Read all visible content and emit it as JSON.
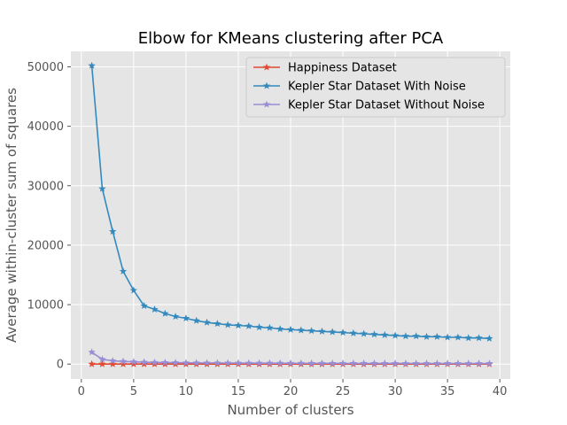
{
  "chart_data": {
    "type": "line",
    "title": "Elbow for KMeans clustering after PCA",
    "xlabel": "Number of clusters",
    "ylabel": "Average within-cluster sum of squares",
    "xlim": [
      -1,
      41
    ],
    "ylim": [
      -2500,
      52600
    ],
    "xticks": [
      0,
      5,
      10,
      15,
      20,
      25,
      30,
      35,
      40
    ],
    "yticks": [
      0,
      10000,
      20000,
      30000,
      40000,
      50000
    ],
    "grid": true,
    "legend_position": "top-right",
    "marker": "star",
    "x": [
      1,
      2,
      3,
      4,
      5,
      6,
      7,
      8,
      9,
      10,
      11,
      12,
      13,
      14,
      15,
      16,
      17,
      18,
      19,
      20,
      21,
      22,
      23,
      24,
      25,
      26,
      27,
      28,
      29,
      30,
      31,
      32,
      33,
      34,
      35,
      36,
      37,
      38,
      39
    ],
    "series": [
      {
        "name": "Happiness Dataset",
        "color": "#E24A33",
        "values": [
          5,
          4,
          3,
          3,
          2,
          2,
          2,
          2,
          2,
          2,
          1,
          1,
          1,
          1,
          1,
          1,
          1,
          1,
          1,
          1,
          1,
          1,
          1,
          1,
          1,
          1,
          1,
          1,
          1,
          1,
          1,
          1,
          1,
          1,
          1,
          1,
          1,
          1,
          1
        ]
      },
      {
        "name": "Kepler Star Dataset With Noise",
        "color": "#348ABD",
        "values": [
          50200,
          29500,
          22300,
          15600,
          12400,
          9800,
          9200,
          8500,
          8000,
          7700,
          7300,
          7000,
          6800,
          6600,
          6500,
          6400,
          6200,
          6100,
          5900,
          5800,
          5700,
          5600,
          5500,
          5400,
          5300,
          5200,
          5100,
          5000,
          4900,
          4800,
          4700,
          4700,
          4600,
          4600,
          4500,
          4500,
          4400,
          4400,
          4300
        ]
      },
      {
        "name": "Kepler Star Dataset Without Noise",
        "color": "#988ED5",
        "values": [
          2000,
          800,
          550,
          450,
          380,
          320,
          280,
          260,
          240,
          220,
          210,
          200,
          190,
          180,
          170,
          165,
          160,
          155,
          150,
          145,
          140,
          135,
          130,
          128,
          125,
          122,
          120,
          118,
          115,
          112,
          110,
          108,
          105,
          103,
          100,
          98,
          96,
          94,
          92
        ]
      }
    ]
  }
}
